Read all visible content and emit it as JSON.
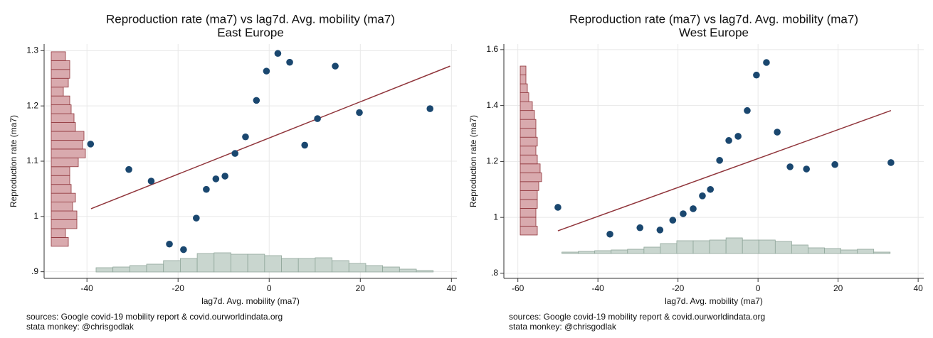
{
  "chart_data": [
    {
      "type": "scatter",
      "title": "Reproduction rate (ma7) vs lag7d. Avg. mobility (ma7)",
      "subtitle": "East Europe",
      "x_label": "lag7d. Avg. mobility (ma7)",
      "y_label": "Reproduction rate (ma7)",
      "notes": [
        "sources: Google covid-19 mobility report & covid.ourworldindata.org",
        "stata monkey: @chrisgodlak"
      ],
      "xlim": [
        -49.4,
        41.2
      ],
      "ylim": [
        0.888,
        1.312
      ],
      "xticks": [
        -40,
        -20,
        0,
        20,
        40
      ],
      "yticks": [
        1.3,
        1.2,
        1.1,
        1,
        {
          "value": 0.9,
          "label": ".9"
        }
      ],
      "grid": true,
      "color": "#1a476f",
      "x": [
        -39.2,
        -30.8,
        -25.9,
        -21.9,
        -18.8,
        -16.0,
        -13.8,
        -11.7,
        -9.7,
        -7.5,
        -5.2,
        -2.8,
        -0.6,
        1.9,
        4.5,
        7.8,
        10.6,
        14.5,
        19.8,
        35.3
      ],
      "y": [
        1.131,
        1.085,
        1.064,
        0.95,
        0.94,
        0.997,
        1.049,
        1.068,
        1.073,
        1.114,
        1.144,
        1.21,
        1.263,
        1.295,
        1.279,
        1.129,
        1.177,
        1.272,
        1.188,
        1.195
      ],
      "fit": {
        "color": "#90353b",
        "x": [
          -39.1,
          39.7
        ],
        "y": [
          1.014,
          1.272
        ]
      },
      "hist_y": {
        "color": "#d9aaae",
        "bins": [
          0.946,
          0.962,
          0.978,
          0.994,
          1.01,
          1.026,
          1.042,
          1.058,
          1.074,
          1.09,
          1.106,
          1.122,
          1.138,
          1.154,
          1.17,
          1.186,
          1.202,
          1.218,
          1.234,
          1.25,
          1.266,
          1.282,
          1.298
        ],
        "values": [
          24,
          20,
          36,
          36,
          30,
          34,
          28,
          26,
          26,
          38,
          48,
          44,
          46,
          34,
          32,
          28,
          26,
          17,
          24,
          26,
          26,
          20
        ]
      },
      "hist_x": {
        "color": "#c9d6cf",
        "bins": [
          -38,
          -34.3,
          -30.6,
          -26.9,
          -23.2,
          -19.5,
          -15.8,
          -12.1,
          -8.4,
          -4.7,
          -1.0,
          2.7,
          6.4,
          10.1,
          13.8,
          17.5,
          21.2,
          24.9,
          28.6,
          32.3,
          36
        ],
        "values": [
          6,
          7,
          9,
          11,
          16,
          19,
          26,
          27,
          25,
          25,
          23,
          19,
          19,
          20,
          16,
          12,
          9,
          7,
          4,
          2
        ]
      }
    },
    {
      "type": "scatter",
      "title": "Reproduction rate (ma7) vs lag7d. Avg. mobility (ma7)",
      "subtitle": "West Europe",
      "x_label": "lag7d. Avg. mobility (ma7)",
      "y_label": "Reproduction rate (ma7)",
      "notes": [
        "sources: Google covid-19 mobility report & covid.ourworldindata.org",
        "stata monkey: @chrisgodlak"
      ],
      "xlim": [
        -63.5,
        41.4
      ],
      "ylim": [
        0.782,
        1.62
      ],
      "xticks": [
        -60,
        -40,
        -20,
        0,
        20,
        40
      ],
      "yticks": [
        1.6,
        1.4,
        1.2,
        1,
        {
          "value": 0.8,
          "label": ".8"
        }
      ],
      "grid": true,
      "color": "#1a476f",
      "x": [
        -50.0,
        -37.0,
        -29.5,
        -24.5,
        -21.3,
        -18.7,
        -16.2,
        -13.9,
        -11.9,
        -9.6,
        -7.3,
        -4.98,
        -2.7,
        -0.4,
        2.1,
        4.8,
        8.0,
        12.1,
        19.2,
        33.2
      ],
      "y": [
        1.036,
        0.94,
        0.963,
        0.955,
        0.99,
        1.013,
        1.031,
        1.077,
        1.1,
        1.204,
        1.275,
        1.29,
        1.382,
        1.509,
        1.554,
        1.305,
        1.181,
        1.173,
        1.189,
        1.196
      ],
      "fit": {
        "color": "#90353b",
        "x": [
          -50.0,
          33.2
        ],
        "y": [
          0.952,
          1.382
        ]
      },
      "hist_y": {
        "color": "#d9aaae",
        "bins": [
          0.937,
          0.9688,
          1.0006,
          1.0324,
          1.0642,
          1.096,
          1.1278,
          1.1596,
          1.1914,
          1.2232,
          1.255,
          1.2868,
          1.3186,
          1.3504,
          1.3822,
          1.414,
          1.4458,
          1.4776,
          1.5094,
          1.5412
        ],
        "values": [
          24,
          22,
          22,
          24,
          24,
          26,
          30,
          28,
          24,
          22,
          24,
          22,
          22,
          20,
          17,
          12,
          10,
          8,
          8
        ]
      },
      "hist_x": {
        "color": "#c9d6cf",
        "bins": [
          -49,
          -44.9,
          -40.8,
          -36.7,
          -32.6,
          -28.5,
          -24.4,
          -20.3,
          -16.2,
          -12.1,
          -8.0,
          -3.9,
          0.2,
          4.3,
          8.4,
          12.5,
          16.6,
          20.7,
          24.8,
          28.9,
          33
        ],
        "values": [
          2,
          3,
          4,
          5,
          6,
          9,
          14,
          18,
          18,
          19,
          22,
          19,
          19,
          17,
          12,
          8,
          7,
          5,
          6,
          2
        ]
      }
    }
  ]
}
